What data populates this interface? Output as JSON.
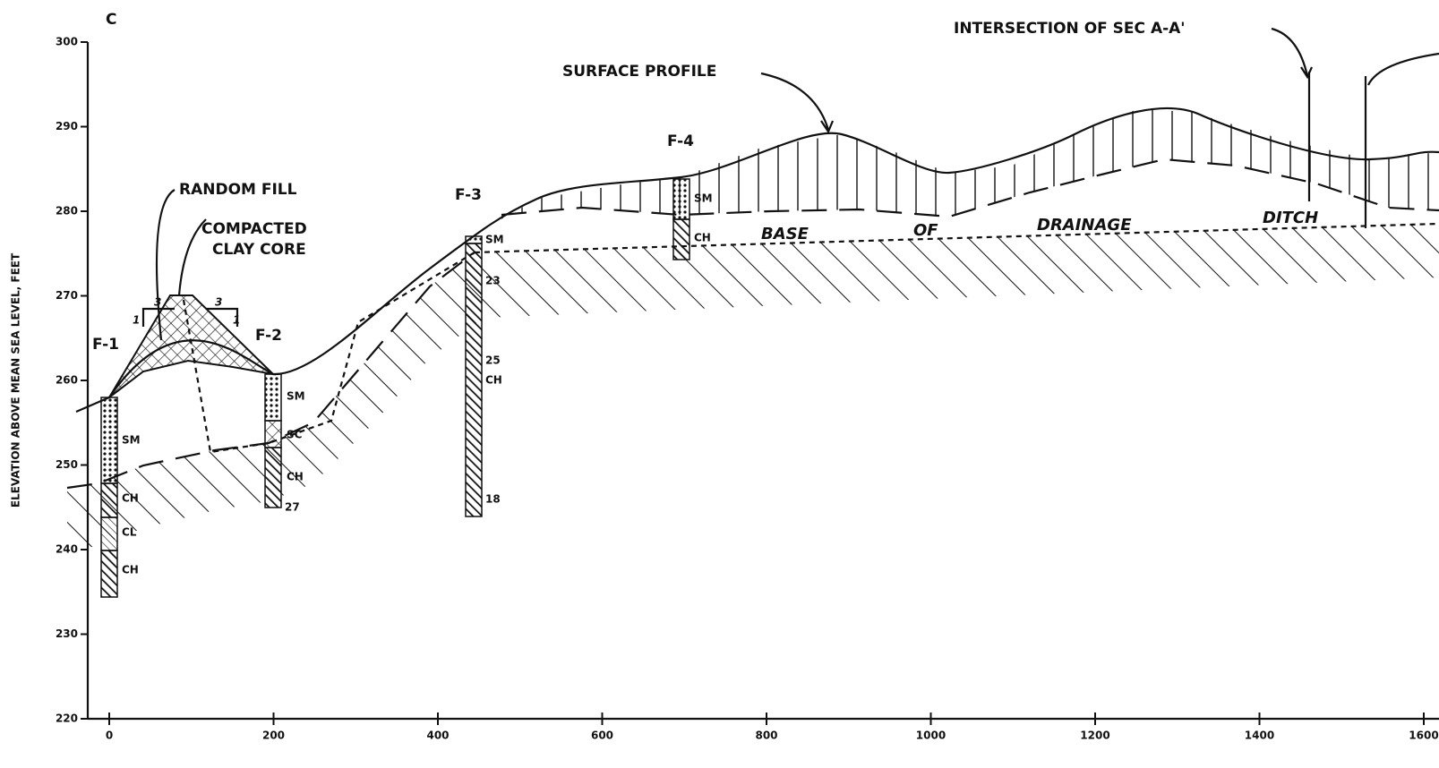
{
  "section": "C",
  "axes": {
    "y_title": "ELEVATION ABOVE MEAN SEA LEVEL, FEET",
    "y_ticks": [
      220,
      230,
      240,
      250,
      260,
      270,
      280,
      290,
      300
    ],
    "x_ticks": [
      0,
      200,
      400,
      600,
      800,
      1000,
      1200,
      1400,
      1600
    ]
  },
  "annotations": {
    "intersection": "INTERSECTION OF SEC A-A'",
    "surface_profile": "SURFACE PROFILE",
    "random_fill": "RANDOM FILL",
    "clay_core": [
      "COMPACTED",
      "CLAY CORE"
    ],
    "drainage_ditch": [
      "BASE",
      "OF",
      "DRAINAGE",
      "DITCH"
    ],
    "slopes": [
      "3",
      "1",
      "3",
      "1"
    ]
  },
  "borings": [
    {
      "label": "F-1",
      "layers": [
        "SM",
        "CH",
        "CL",
        "CH"
      ]
    },
    {
      "label": "F-2",
      "layers": [
        "SM",
        "SC",
        "CH"
      ],
      "depth_marks": [
        "27"
      ]
    },
    {
      "label": "F-3",
      "layers": [
        "SM",
        "CH"
      ],
      "depth_marks": [
        "23",
        "25",
        "18"
      ]
    },
    {
      "label": "F-4",
      "layers": [
        "SM",
        "CH"
      ]
    }
  ]
}
